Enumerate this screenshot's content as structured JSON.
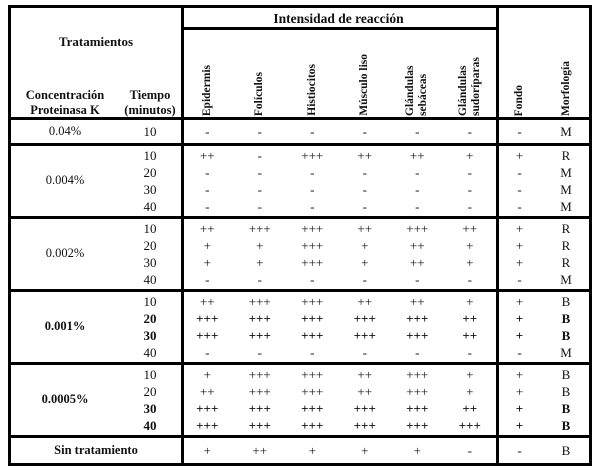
{
  "colors": {
    "border": "#000000",
    "text": "#111111",
    "background": "#ffffff"
  },
  "table": {
    "treatments_header": "Tratamientos",
    "col_concentration": [
      "Concentración",
      "Proteinasa K"
    ],
    "col_time": [
      "Tiempo",
      "(minutos)"
    ],
    "intensity_title": "Intensidad de reacción",
    "intensity_columns": [
      "Epidermis",
      "Folículos",
      "Histiocitos",
      "Músculo liso",
      "Glándulas sebáceas",
      "Glándulas sudoríparas"
    ],
    "right_columns": [
      "Fondo",
      "Morfología"
    ],
    "blocks": [
      {
        "concentration": "0.04%",
        "bold": false,
        "footer": false,
        "rows": [
          {
            "time": "10",
            "bold": false,
            "values": [
              "-",
              "-",
              "-",
              "-",
              "-",
              "-"
            ],
            "fondo": "-",
            "morfologia": "M"
          }
        ]
      },
      {
        "concentration": "0.004%",
        "bold": false,
        "footer": false,
        "rows": [
          {
            "time": "10",
            "bold": false,
            "values": [
              "++",
              "-",
              "+++",
              "++",
              "++",
              "+"
            ],
            "fondo": "+",
            "morfologia": "R"
          },
          {
            "time": "20",
            "bold": false,
            "values": [
              "-",
              "-",
              "-",
              "-",
              "-",
              "-"
            ],
            "fondo": "-",
            "morfologia": "M"
          },
          {
            "time": "30",
            "bold": false,
            "values": [
              "-",
              "-",
              "-",
              "-",
              "-",
              "-"
            ],
            "fondo": "-",
            "morfologia": "M"
          },
          {
            "time": "40",
            "bold": false,
            "values": [
              "-",
              "-",
              "-",
              "-",
              "-",
              "-"
            ],
            "fondo": "-",
            "morfologia": "M"
          }
        ]
      },
      {
        "concentration": "0.002%",
        "bold": false,
        "footer": false,
        "rows": [
          {
            "time": "10",
            "bold": false,
            "values": [
              "++",
              "+++",
              "+++",
              "++",
              "+++",
              "++"
            ],
            "fondo": "+",
            "morfologia": "R"
          },
          {
            "time": "20",
            "bold": false,
            "values": [
              "+",
              "+",
              "+++",
              "+",
              "++",
              "+"
            ],
            "fondo": "+",
            "morfologia": "R"
          },
          {
            "time": "30",
            "bold": false,
            "values": [
              "+",
              "+",
              "+++",
              "+",
              "++",
              "+"
            ],
            "fondo": "+",
            "morfologia": "R"
          },
          {
            "time": "40",
            "bold": false,
            "values": [
              "-",
              "-",
              "-",
              "-",
              "-",
              "-"
            ],
            "fondo": "-",
            "morfologia": "M"
          }
        ]
      },
      {
        "concentration": "0.001%",
        "bold": true,
        "footer": false,
        "rows": [
          {
            "time": "10",
            "bold": false,
            "values": [
              "++",
              "+++",
              "+++",
              "++",
              "++",
              "+"
            ],
            "fondo": "+",
            "morfologia": "B"
          },
          {
            "time": "20",
            "bold": true,
            "values": [
              "+++",
              "+++",
              "+++",
              "+++",
              "+++",
              "++"
            ],
            "fondo": "+",
            "morfologia": "B"
          },
          {
            "time": "30",
            "bold": true,
            "values": [
              "+++",
              "+++",
              "+++",
              "+++",
              "+++",
              "++"
            ],
            "fondo": "+",
            "morfologia": "B"
          },
          {
            "time": "40",
            "bold": false,
            "values": [
              "-",
              "-",
              "-",
              "-",
              "-",
              "-"
            ],
            "fondo": "-",
            "morfologia": "M"
          }
        ]
      },
      {
        "concentration": "0.0005%",
        "bold": true,
        "footer": false,
        "rows": [
          {
            "time": "10",
            "bold": false,
            "values": [
              "+",
              "+++",
              "+++",
              "++",
              "+++",
              "+"
            ],
            "fondo": "+",
            "morfologia": "B"
          },
          {
            "time": "20",
            "bold": false,
            "values": [
              "++",
              "+++",
              "+++",
              "++",
              "+++",
              "+"
            ],
            "fondo": "+",
            "morfologia": "B"
          },
          {
            "time": "30",
            "bold": true,
            "values": [
              "+++",
              "+++",
              "+++",
              "+++",
              "+++",
              "++"
            ],
            "fondo": "+",
            "morfologia": "B"
          },
          {
            "time": "40",
            "bold": true,
            "values": [
              "+++",
              "+++",
              "+++",
              "+++",
              "+++",
              "+++"
            ],
            "fondo": "+",
            "morfologia": "B"
          }
        ]
      },
      {
        "concentration": "Sin tratamiento",
        "bold": true,
        "footer": true,
        "rows": [
          {
            "time": null,
            "bold": false,
            "values": [
              "+",
              "++",
              "+",
              "+",
              "+",
              "-"
            ],
            "fondo": "-",
            "morfologia": "B"
          }
        ]
      }
    ]
  }
}
